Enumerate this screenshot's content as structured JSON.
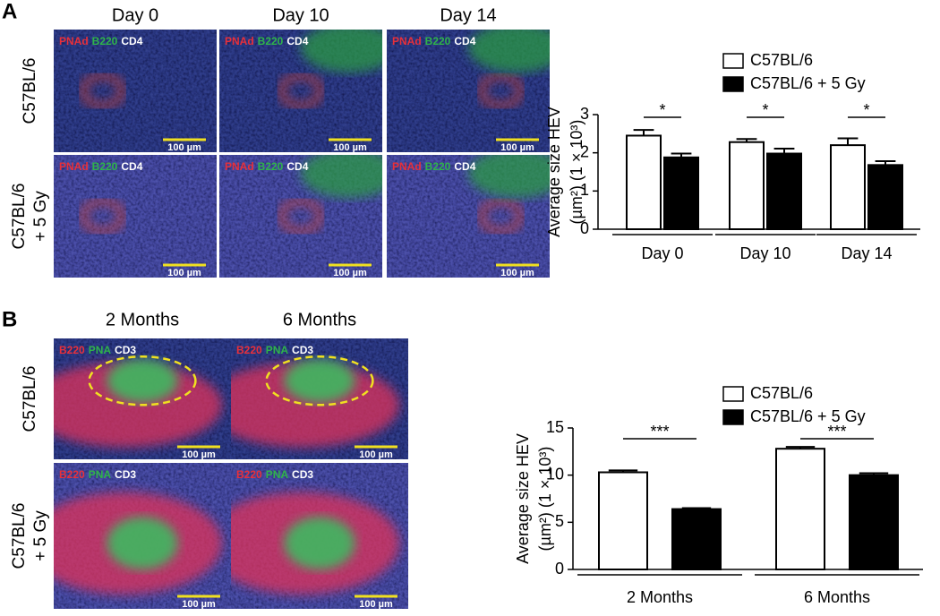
{
  "figure": {
    "panels": [
      {
        "letter": "A",
        "columns": [
          "Day 0",
          "Day 10",
          "Day 14"
        ],
        "rows": [
          [
            "C57BL/6"
          ],
          [
            "C57BL/6",
            "+ 5 Gy"
          ]
        ],
        "stains": [
          "PNAd",
          "B220",
          "CD4"
        ],
        "stain_colors": [
          "#e8303a",
          "#2fb44a",
          "#ffffff"
        ],
        "scale_bar": "100 µm"
      },
      {
        "letter": "B",
        "columns": [
          "2 Months",
          "6 Months"
        ],
        "rows": [
          [
            "C57BL/6"
          ],
          [
            "C57BL/6",
            "+ 5 Gy"
          ]
        ],
        "stains": [
          "B220",
          "PNA",
          "CD3"
        ],
        "stain_colors": [
          "#e8303a",
          "#2fb44a",
          "#ffffff"
        ],
        "scale_bar": "100 µm"
      }
    ]
  },
  "chart_data": [
    {
      "type": "bar",
      "categories": [
        "Day 0",
        "Day 10",
        "Day 14"
      ],
      "series": [
        {
          "name": "C57BL/6",
          "color": "#ffffff",
          "values": [
            2.45,
            2.28,
            2.2
          ],
          "errors": [
            0.15,
            0.08,
            0.18
          ]
        },
        {
          "name": "C57BL/6 + 5 Gy",
          "color": "#000000",
          "values": [
            1.88,
            1.98,
            1.68
          ],
          "errors": [
            0.1,
            0.13,
            0.1
          ]
        }
      ],
      "y_label": [
        "Average size HEV",
        "(µm²) (1 × 10³)"
      ],
      "ylim": [
        0,
        3
      ],
      "yticks": [
        0,
        1,
        2,
        3
      ],
      "significance": [
        "*",
        "*",
        "*"
      ]
    },
    {
      "type": "bar",
      "categories": [
        "2 Months",
        "6 Months"
      ],
      "series": [
        {
          "name": "C57BL/6",
          "color": "#ffffff",
          "values": [
            10.3,
            12.8
          ],
          "errors": [
            0.2,
            0.2
          ]
        },
        {
          "name": "C57BL/6 + 5 Gy",
          "color": "#000000",
          "values": [
            6.4,
            10.0
          ],
          "errors": [
            0.1,
            0.2
          ]
        }
      ],
      "y_label": [
        "Average size HEV",
        "(µm²) (1 × 10³)"
      ],
      "ylim": [
        0,
        15
      ],
      "yticks": [
        0,
        5,
        10,
        15
      ],
      "significance": [
        "***",
        "***"
      ]
    }
  ]
}
